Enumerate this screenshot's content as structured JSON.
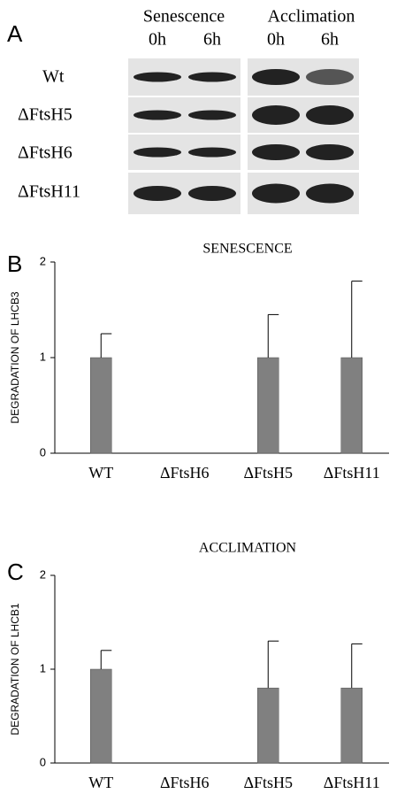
{
  "blot": {
    "panel_label": "A",
    "groups": [
      "Senescence",
      "Acclimation"
    ],
    "times": [
      "0h",
      "6h",
      "0h",
      "6h"
    ],
    "rows": [
      "Wt",
      "ΔFtsH5",
      "ΔFtsH6",
      "ΔFtsH11"
    ]
  },
  "chart_data": [
    {
      "type": "bar",
      "panel_label": "B",
      "title": "SENESCENCE",
      "y_label": "DEGRADATION OF LHCB3",
      "categories": [
        "WT",
        "ΔFtsH6",
        "ΔFtsH5",
        "ΔFtsH11"
      ],
      "values": [
        1,
        0,
        1,
        1
      ],
      "errors": [
        0.25,
        0,
        0.45,
        0.8
      ],
      "color": "#808080",
      "ylim": [
        0,
        2
      ],
      "yticks": [
        0,
        1,
        2
      ]
    },
    {
      "type": "bar",
      "panel_label": "C",
      "title": "ACCLIMATION",
      "y_label": "DEGRADATION OF LHCB1",
      "categories": [
        "WT",
        "ΔFtsH6",
        "ΔFtsH5",
        "ΔFtsH11"
      ],
      "values": [
        1,
        0,
        0.8,
        0.8
      ],
      "errors": [
        0.2,
        0,
        0.5,
        0.47
      ],
      "color": "#808080",
      "ylim": [
        0,
        2
      ],
      "yticks": [
        0,
        1,
        2
      ]
    }
  ]
}
